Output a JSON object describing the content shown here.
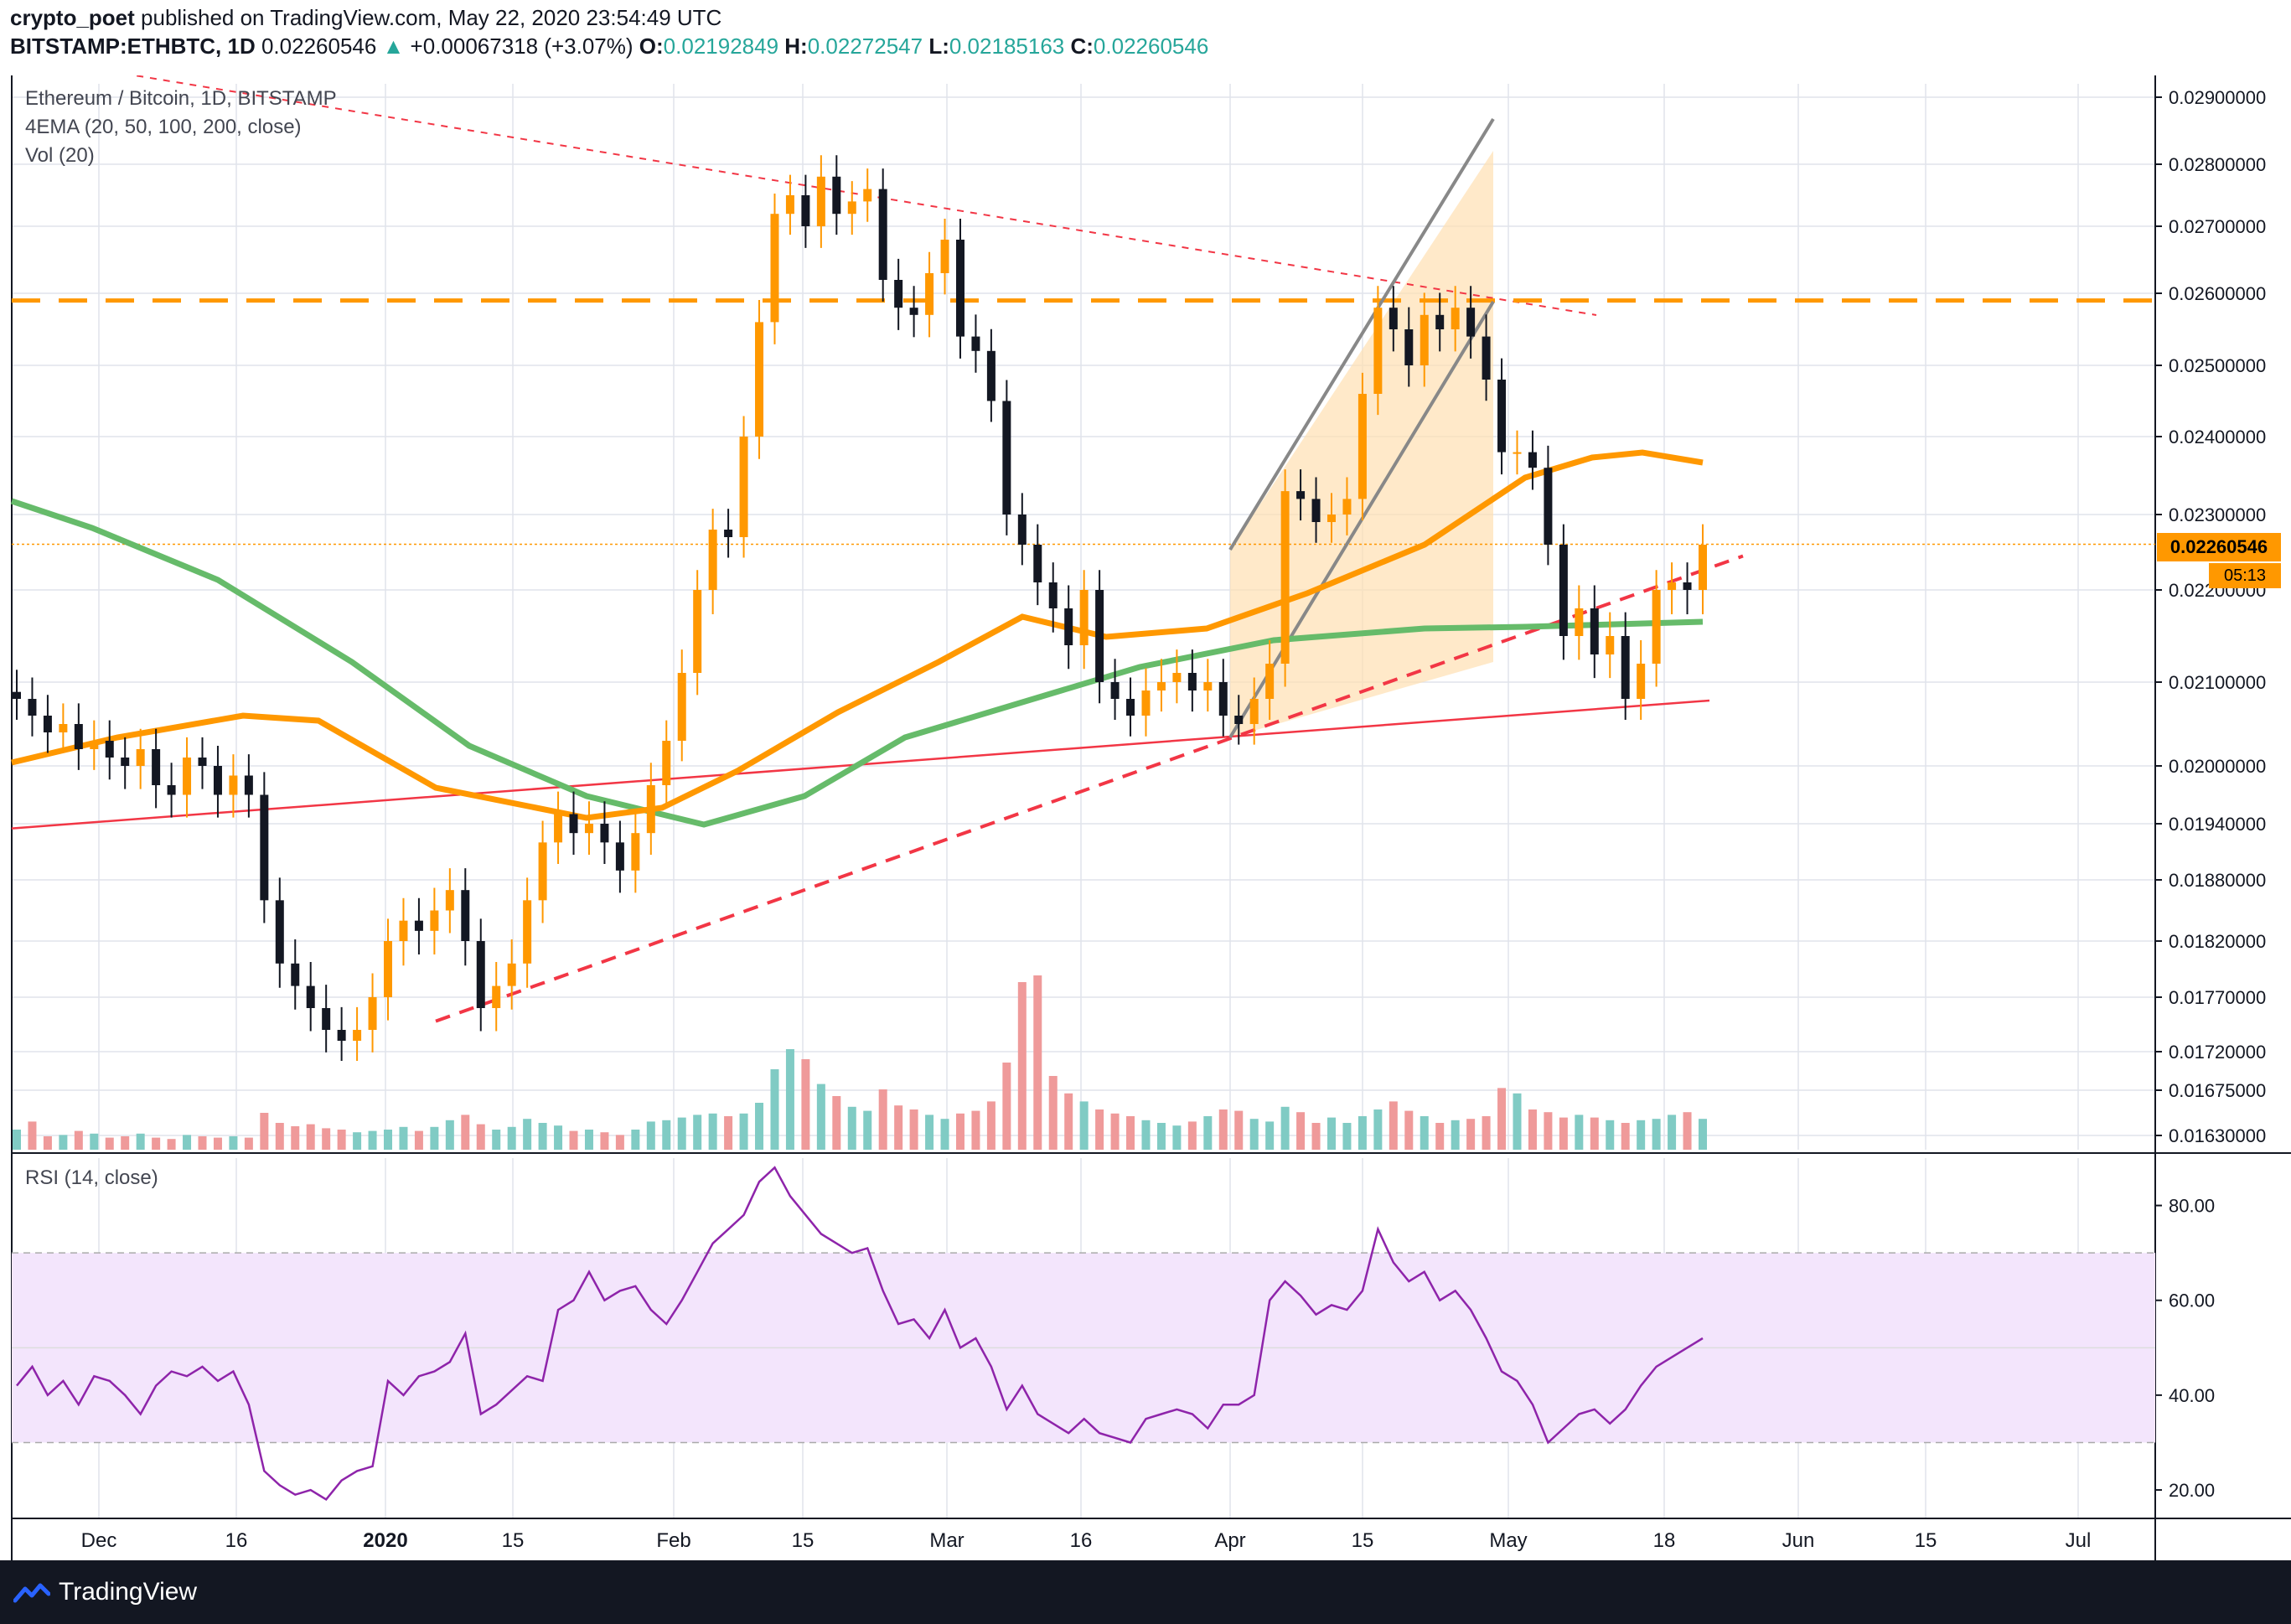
{
  "header": {
    "author": "crypto_poet",
    "published": "published on TradingView.com, May 22, 2020 23:54:49 UTC",
    "symbol": "BITSTAMP:ETHBTC, 1D",
    "last": "0.02260546",
    "change": "+0.00067318 (+3.07%)",
    "o_label": "O:",
    "o": "0.02192849",
    "h_label": "H:",
    "h": "0.02272547",
    "l_label": "L:",
    "l": "0.02185163",
    "c_label": "C:",
    "c": "0.02260546"
  },
  "legend": {
    "title": "Ethereum / Bitcoin, 1D, BITSTAMP",
    "ema": "4EMA (20, 50, 100, 200, close)",
    "vol": "Vol (20)",
    "rsi": "RSI (14, close)"
  },
  "price_tag": "0.02260546",
  "timer": "05:13",
  "footer": {
    "brand": "TradingView"
  },
  "colors": {
    "up": "#ff9800",
    "down": "#131722",
    "ema_orange": "#ff9800",
    "ema_green": "#66bb6a",
    "trend_red": "#f23645",
    "rsi_line": "#8e24aa",
    "rsi_band": "#f3e5fc",
    "grid": "#e0e3eb",
    "vol_up": "#80cbc4",
    "vol_down": "#ef9a9a"
  },
  "chart_data": [
    {
      "type": "candlestick",
      "title": "Ethereum / Bitcoin, 1D, BITSTAMP",
      "y_ticks": [
        0.029,
        0.028,
        0.027,
        0.026,
        0.025,
        0.024,
        0.023,
        0.022,
        0.021,
        0.02,
        0.0194,
        0.0188,
        0.0182,
        0.0177,
        0.0172,
        0.01675,
        0.0163
      ],
      "y_tick_labels": [
        "0.02900000",
        "0.02800000",
        "0.02700000",
        "0.02600000",
        "0.02500000",
        "0.02400000",
        "0.02300000",
        "0.02200000",
        "0.02100000",
        "0.02000000",
        "0.01940000",
        "0.01880000",
        "0.01820000",
        "0.01770000",
        "0.01720000",
        "0.01675000",
        "0.01630000"
      ],
      "x_tick_labels": [
        "Dec",
        "16",
        "2020",
        "15",
        "Feb",
        "15",
        "Mar",
        "16",
        "Apr",
        "15",
        "May",
        "18",
        "Jun",
        "15",
        "Jul"
      ],
      "close_path": [
        0.0208,
        0.0206,
        0.0204,
        0.0205,
        0.0202,
        0.0203,
        0.0201,
        0.02,
        0.0202,
        0.0198,
        0.0197,
        0.0201,
        0.02,
        0.0197,
        0.0199,
        0.0197,
        0.0186,
        0.018,
        0.0178,
        0.0176,
        0.0174,
        0.0173,
        0.0174,
        0.0177,
        0.0182,
        0.0184,
        0.0183,
        0.0185,
        0.0187,
        0.0182,
        0.0176,
        0.0178,
        0.018,
        0.0186,
        0.0192,
        0.0195,
        0.0193,
        0.0194,
        0.0192,
        0.0189,
        0.0193,
        0.0198,
        0.0203,
        0.0211,
        0.022,
        0.0228,
        0.0227,
        0.024,
        0.0256,
        0.0272,
        0.0275,
        0.027,
        0.0278,
        0.0272,
        0.0274,
        0.0276,
        0.0262,
        0.0258,
        0.0257,
        0.0263,
        0.0268,
        0.0254,
        0.0252,
        0.0245,
        0.023,
        0.0226,
        0.0221,
        0.0218,
        0.0214,
        0.022,
        0.021,
        0.0208,
        0.0206,
        0.0209,
        0.021,
        0.0211,
        0.0209,
        0.021,
        0.0206,
        0.0205,
        0.0208,
        0.0212,
        0.0233,
        0.0232,
        0.0229,
        0.023,
        0.0232,
        0.0246,
        0.0258,
        0.0255,
        0.025,
        0.0257,
        0.0255,
        0.0258,
        0.0254,
        0.0248,
        0.0238,
        0.0238,
        0.0236,
        0.0226,
        0.0215,
        0.0218,
        0.0213,
        0.0215,
        0.0208,
        0.0212,
        0.022,
        0.0221,
        0.022,
        0.0226
      ],
      "reference_levels": {
        "last_price": 0.02260546,
        "resistance_dashed": 0.0259
      },
      "indicators": [
        "EMA 50 (orange)",
        "EMA 100 (green)"
      ],
      "volume_label": "Vol (20)"
    },
    {
      "type": "line",
      "title": "RSI (14, close)",
      "y_ticks": [
        80,
        60,
        40,
        20
      ],
      "y_tick_labels": [
        "80.00",
        "60.00",
        "40.00",
        "20.00"
      ],
      "band": [
        30,
        70
      ],
      "values": [
        42,
        46,
        40,
        43,
        38,
        44,
        43,
        40,
        36,
        42,
        45,
        44,
        46,
        43,
        45,
        38,
        24,
        21,
        19,
        20,
        18,
        22,
        24,
        25,
        43,
        40,
        44,
        45,
        47,
        53,
        36,
        38,
        41,
        44,
        43,
        58,
        60,
        66,
        60,
        62,
        63,
        58,
        55,
        60,
        66,
        72,
        75,
        78,
        85,
        88,
        82,
        78,
        74,
        72,
        70,
        71,
        62,
        55,
        56,
        52,
        58,
        50,
        52,
        46,
        37,
        42,
        36,
        34,
        32,
        35,
        32,
        31,
        30,
        35,
        36,
        37,
        36,
        33,
        38,
        38,
        40,
        60,
        64,
        61,
        57,
        59,
        58,
        62,
        75,
        68,
        64,
        66,
        60,
        62,
        58,
        52,
        45,
        43,
        38,
        30,
        33,
        36,
        37,
        34,
        37,
        42,
        46,
        48,
        50,
        52
      ],
      "ylim": [
        14,
        90
      ]
    }
  ]
}
